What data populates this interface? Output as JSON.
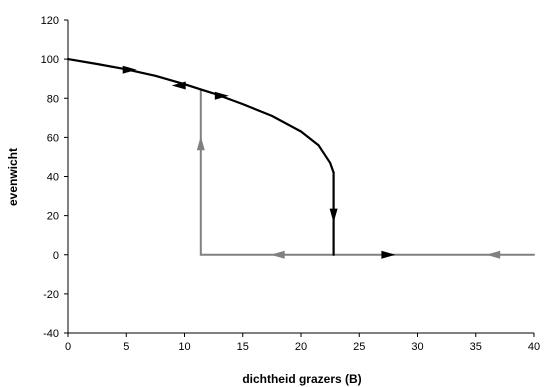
{
  "chart_data": {
    "type": "line",
    "title": "",
    "xlabel": "dichtheid grazers (B)",
    "ylabel": "evenwicht",
    "xlim": [
      0,
      40
    ],
    "ylim": [
      -40,
      120
    ],
    "x_ticks": [
      "0",
      "5",
      "10",
      "15",
      "20",
      "25",
      "30",
      "35",
      "40"
    ],
    "y_ticks": [
      "-40",
      "-20",
      "0",
      "20",
      "40",
      "60",
      "80",
      "100",
      "120"
    ],
    "grid": false,
    "legend": "none",
    "series": [
      {
        "color": "#000000",
        "points": [
          [
            0,
            100
          ],
          [
            2.5,
            97.5
          ],
          [
            5,
            94.8
          ],
          [
            7.5,
            91.5
          ],
          [
            10,
            87.2
          ],
          [
            11.4,
            84.5
          ],
          [
            12.5,
            82.5
          ],
          [
            15,
            77
          ],
          [
            17.5,
            71
          ],
          [
            20,
            63
          ],
          [
            21.5,
            56
          ],
          [
            22.5,
            47
          ],
          [
            22.8,
            42
          ]
        ]
      },
      {
        "color": "#000000",
        "points": [
          [
            22.8,
            42
          ],
          [
            22.8,
            0
          ]
        ]
      },
      {
        "color": "#808080",
        "points": [
          [
            11.4,
            0
          ],
          [
            40,
            0
          ]
        ]
      },
      {
        "color": "#808080",
        "points": [
          [
            11.4,
            0
          ],
          [
            11.4,
            84.5
          ]
        ]
      }
    ],
    "arrows": [
      {
        "x": 5.3,
        "y": 94.6,
        "direction": "right",
        "color": "#000000"
      },
      {
        "x": 9.5,
        "y": 86.5,
        "direction": "left",
        "color": "#000000"
      },
      {
        "x": 13.2,
        "y": 81.3,
        "direction": "right",
        "color": "#000000"
      },
      {
        "x": 22.8,
        "y": 20,
        "direction": "down",
        "color": "#000000"
      },
      {
        "x": 11.4,
        "y": 57,
        "direction": "up",
        "color": "#808080"
      },
      {
        "x": 18,
        "y": 0,
        "direction": "left",
        "color": "#808080"
      },
      {
        "x": 27.5,
        "y": 0,
        "direction": "right",
        "color": "#000000"
      },
      {
        "x": 36.5,
        "y": 0,
        "direction": "left",
        "color": "#808080"
      }
    ]
  }
}
